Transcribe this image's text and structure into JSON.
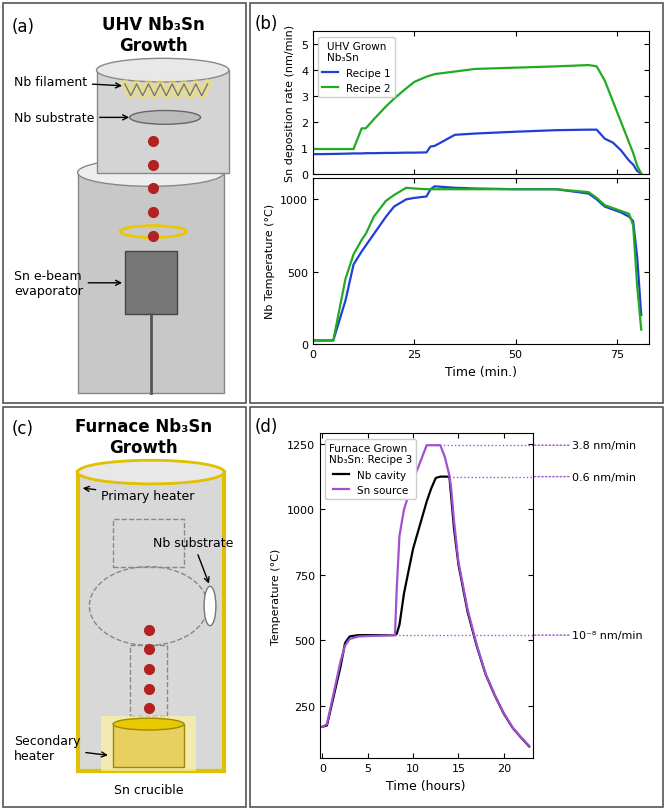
{
  "chart_data": [
    {
      "type": "diagram",
      "panel_label": "(a)",
      "title": "UHV Nb₃Sn\nGrowth",
      "labels": [
        "Nb filament",
        "Nb substrate",
        "Sn e-beam\nevaporator"
      ]
    },
    {
      "type": "line",
      "panel_label": "(b)",
      "ylabel": "Sn deposition rate (nm/min)",
      "legend": "upper left",
      "legend_title": "UHV Grown\nNb₃Sn",
      "tick_labels": "y",
      "x": [
        0,
        5,
        8,
        10,
        12,
        13,
        15,
        18,
        20,
        23,
        25,
        28,
        29,
        30,
        35,
        40,
        50,
        60,
        68,
        70,
        72,
        74,
        76,
        78,
        79,
        80,
        81
      ],
      "xlim": [
        0,
        83
      ],
      "xticks": [
        0,
        25,
        50,
        75
      ],
      "ylim": [
        0,
        5.5
      ],
      "yticks": [
        0,
        1,
        2,
        3,
        4,
        5
      ],
      "series": [
        {
          "name": "Recipe 1",
          "color": "#1f3fd6",
          "values": [
            0.75,
            0.76,
            0.77,
            0.78,
            0.78,
            0.79,
            0.79,
            0.8,
            0.8,
            0.81,
            0.81,
            0.82,
            1.05,
            1.07,
            1.5,
            1.55,
            1.62,
            1.68,
            1.7,
            1.7,
            1.35,
            1.2,
            0.9,
            0.5,
            0.35,
            0.1,
            0.0
          ]
        },
        {
          "name": "Recipe 2",
          "color": "#22aa22",
          "values": [
            0.95,
            0.95,
            0.95,
            0.95,
            1.75,
            1.75,
            2.1,
            2.6,
            2.9,
            3.3,
            3.55,
            3.75,
            3.8,
            3.85,
            3.95,
            4.05,
            4.1,
            4.15,
            4.2,
            4.15,
            3.6,
            2.8,
            2.0,
            1.2,
            0.8,
            0.3,
            0.0
          ]
        }
      ]
    },
    {
      "type": "line",
      "xlabel": "Time (min.)",
      "ylabel": "Nb Temperature (°C)",
      "x": [
        0,
        5,
        8,
        10,
        12,
        13,
        15,
        18,
        20,
        23,
        25,
        28,
        29,
        30,
        35,
        40,
        50,
        60,
        68,
        70,
        72,
        74,
        76,
        78,
        79,
        80,
        81
      ],
      "xlim": [
        0,
        83
      ],
      "xticks": [
        0,
        25,
        50,
        75
      ],
      "ylim": [
        0,
        1150
      ],
      "yticks": [
        0,
        500,
        1000
      ],
      "series": [
        {
          "name": "Recipe 1",
          "color": "#1f3fd6",
          "values": [
            25,
            25,
            300,
            550,
            640,
            680,
            760,
            880,
            950,
            1000,
            1010,
            1020,
            1070,
            1090,
            1080,
            1075,
            1070,
            1070,
            1040,
            1000,
            950,
            930,
            910,
            880,
            850,
            600,
            200
          ]
        },
        {
          "name": "Recipe 2",
          "color": "#22aa22",
          "values": [
            25,
            25,
            450,
            620,
            720,
            760,
            880,
            990,
            1030,
            1080,
            1075,
            1070,
            1070,
            1070,
            1070,
            1070,
            1070,
            1070,
            1050,
            1010,
            960,
            940,
            920,
            900,
            820,
            400,
            100
          ]
        }
      ]
    },
    {
      "type": "diagram",
      "panel_label": "(c)",
      "title": "Furnace Nb₃Sn\nGrowth",
      "labels": [
        "Primary heater",
        "Nb substrate",
        "Secondary\nheater",
        "Sn crucible"
      ]
    },
    {
      "type": "line",
      "panel_label": "(d)",
      "xlabel": "Time (hours)",
      "ylabel": "Temperature (°C)",
      "legend": "upper left",
      "legend_title": "Furnace Grown\nNb₃Sn: Recipe 3",
      "x": [
        0,
        0.5,
        1,
        2,
        2.5,
        3,
        4,
        8,
        8.2,
        8.5,
        9,
        10,
        11,
        11.5,
        12,
        12.5,
        13,
        13.5,
        14,
        14.2,
        14.5,
        15,
        16,
        17,
        18,
        19,
        20,
        21,
        22,
        22.8
      ],
      "xlim": [
        -0.3,
        23.2
      ],
      "xticks": [
        0,
        5,
        10,
        15,
        20
      ],
      "ylim": [
        50,
        1290
      ],
      "yticks": [
        250,
        500,
        750,
        1000,
        1250
      ],
      "series": [
        {
          "name": "Nb cavity",
          "color": "#000000",
          "values": [
            170,
            175,
            250,
            400,
            490,
            515,
            520,
            520,
            525,
            560,
            680,
            850,
            970,
            1030,
            1080,
            1120,
            1125,
            1125,
            1125,
            1050,
            930,
            790,
            610,
            480,
            370,
            290,
            220,
            165,
            125,
            95
          ]
        },
        {
          "name": "Sn source",
          "color": "#a050d0",
          "values": [
            170,
            180,
            260,
            420,
            480,
            505,
            515,
            520,
            700,
            900,
            1000,
            1110,
            1200,
            1245,
            1245,
            1245,
            1245,
            1200,
            1130,
            1080,
            960,
            800,
            620,
            485,
            372,
            292,
            222,
            166,
            126,
            97
          ]
        }
      ],
      "annotations": [
        {
          "text": "3.8 nm/min",
          "x": 12.5,
          "y": 1245,
          "color": "#a050d0"
        },
        {
          "text": "0.6 nm/min",
          "x": 14,
          "y": 1125,
          "color": "#a050d0"
        },
        {
          "text": "10⁻⁸ nm/min",
          "x": 8,
          "y": 520,
          "color": "#a050d0"
        }
      ]
    }
  ]
}
